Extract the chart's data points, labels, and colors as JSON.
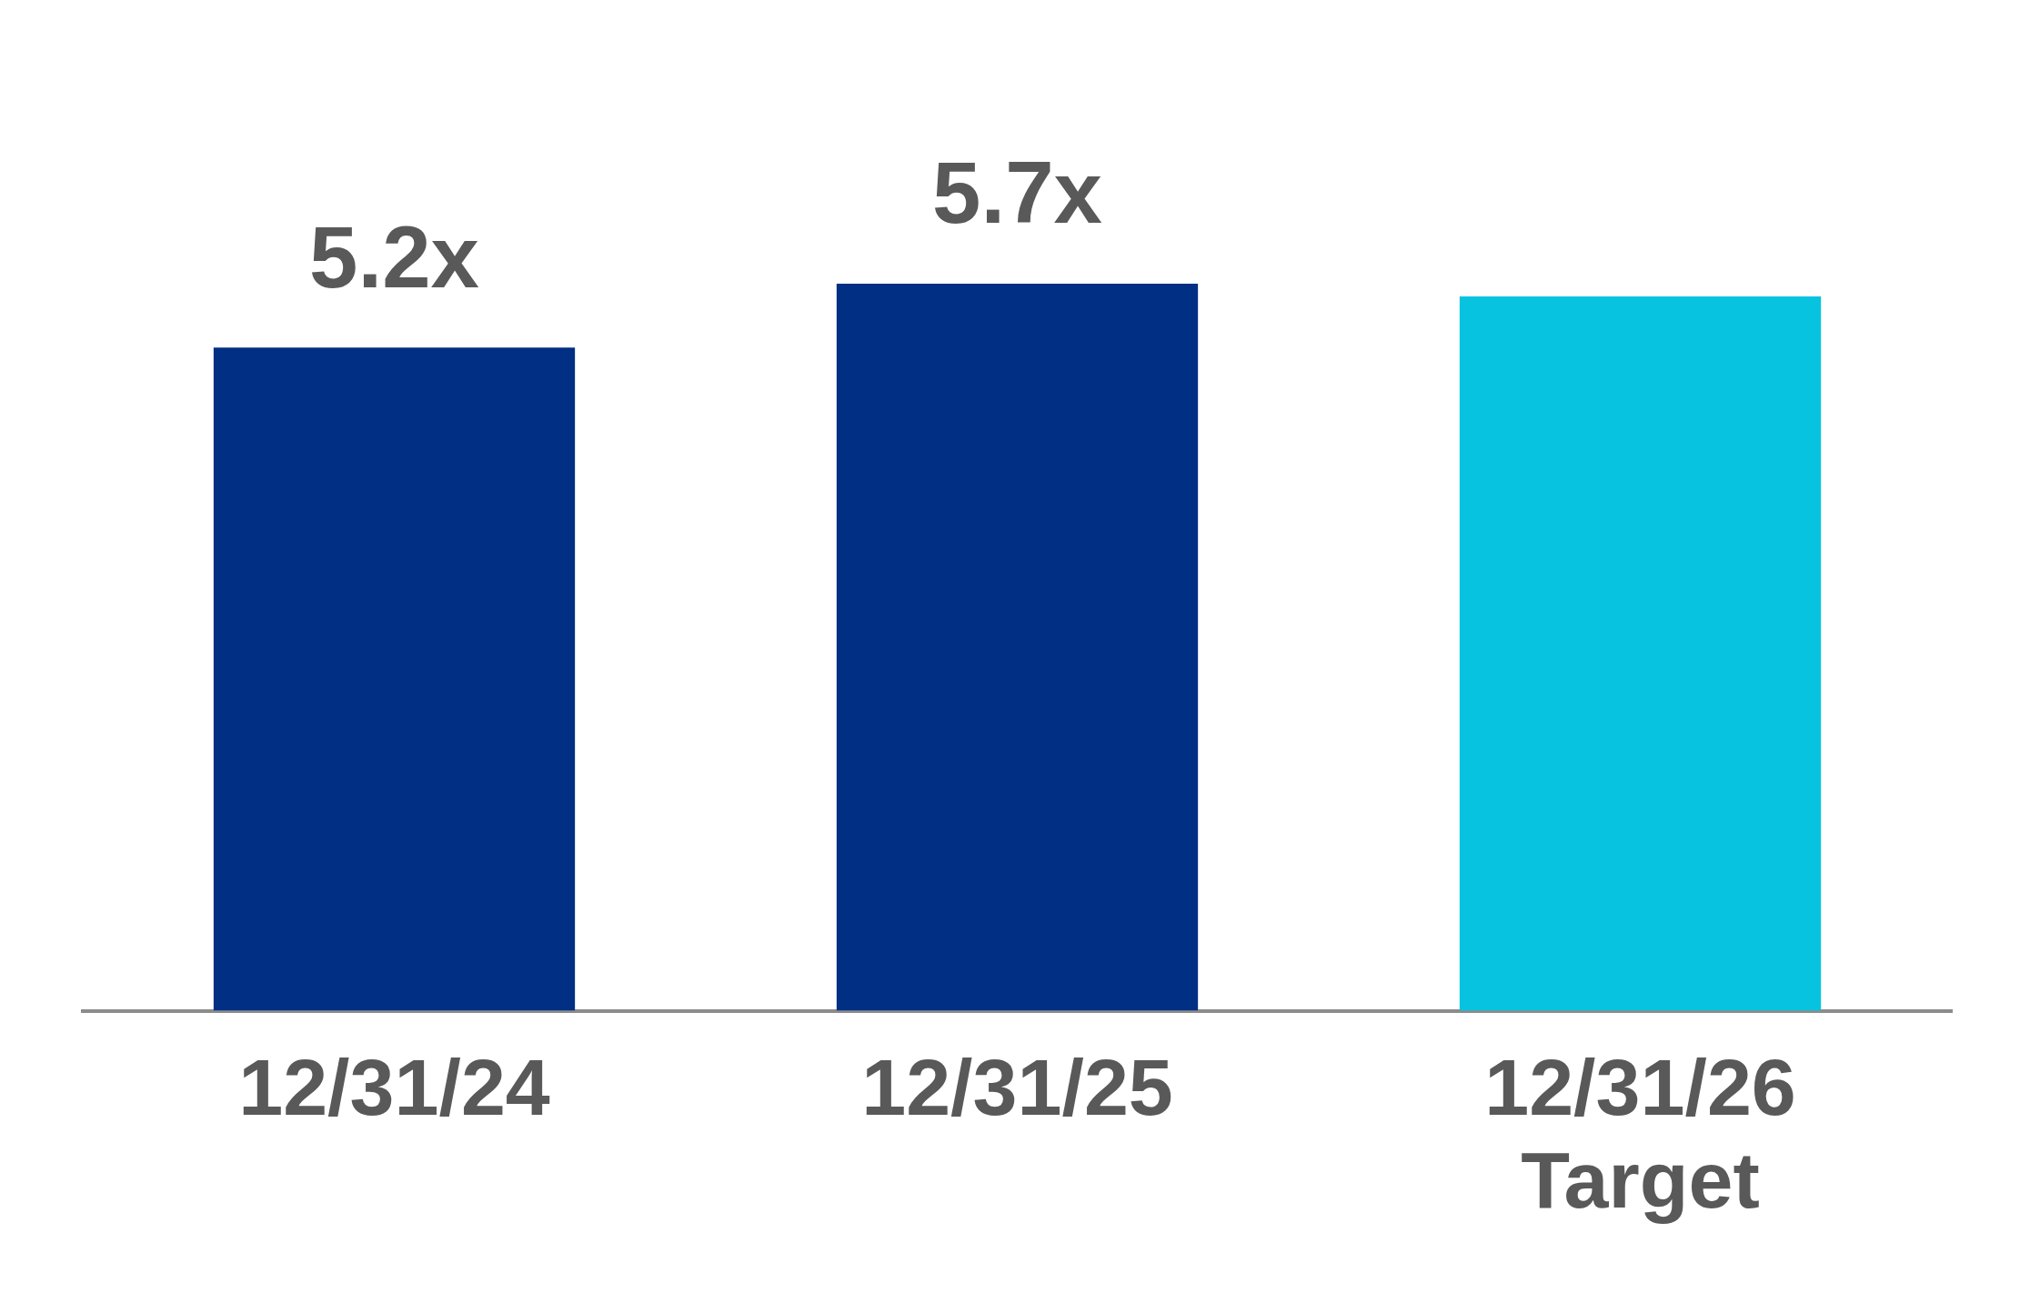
{
  "chart_data": {
    "type": "bar",
    "categories": [
      "12/31/24",
      "12/31/25",
      "12/31/26\nTarget"
    ],
    "values": [
      5.2,
      5.7,
      5.6
    ],
    "colors": [
      "#012f84",
      "#012f84",
      "#07c3df"
    ],
    "value_labels": [
      "5.2x",
      "5.7x",
      null
    ]
  }
}
